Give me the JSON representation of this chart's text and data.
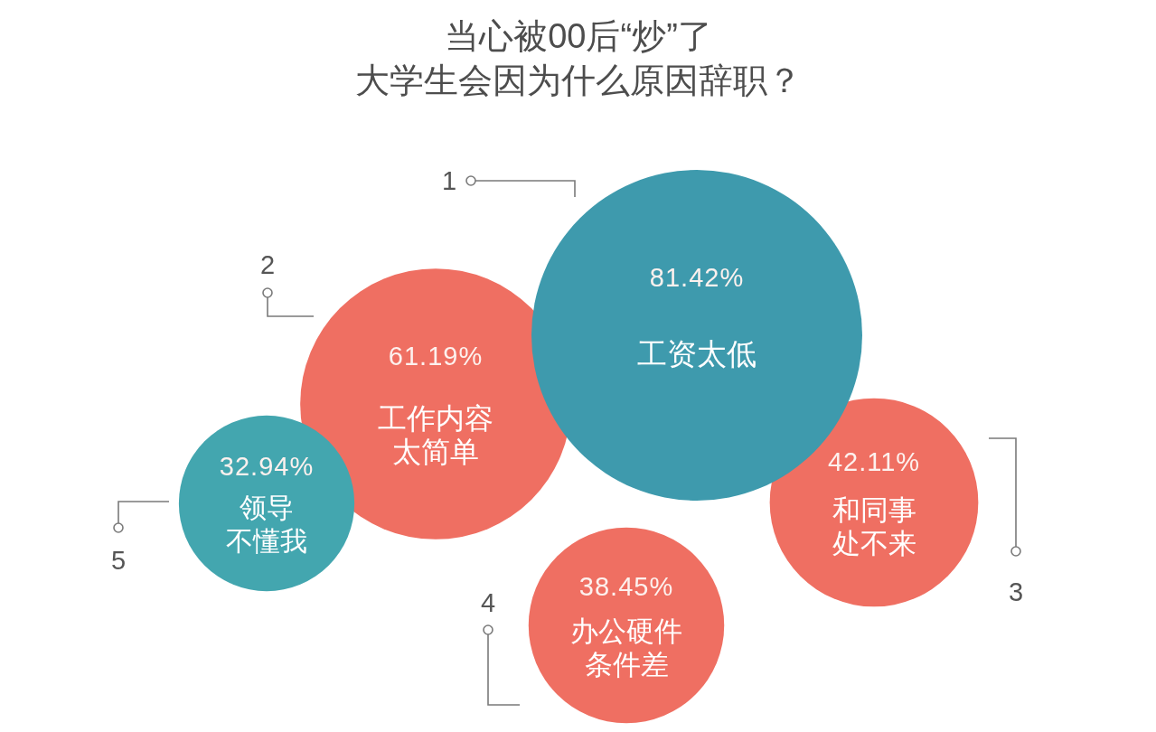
{
  "chart_data": {
    "type": "other",
    "title": "当心被00后“炒”了",
    "subtitle": "大学生会因为什么原因辞职？",
    "categories": [
      "工资太低",
      "工作内容太简单",
      "和同事处不来",
      "办公硬件条件差",
      "领导不懂我"
    ],
    "values": [
      81.42,
      61.19,
      42.11,
      38.45,
      32.94
    ],
    "value_labels": [
      "81.42%",
      "61.19%",
      "42.11%",
      "38.45%",
      "32.94%"
    ],
    "colors": [
      "#3e9aad",
      "#ef6f62",
      "#ef6f62",
      "#ef6f62",
      "#43a6af"
    ],
    "annotations": [
      "1",
      "2",
      "3",
      "4",
      "5"
    ]
  }
}
